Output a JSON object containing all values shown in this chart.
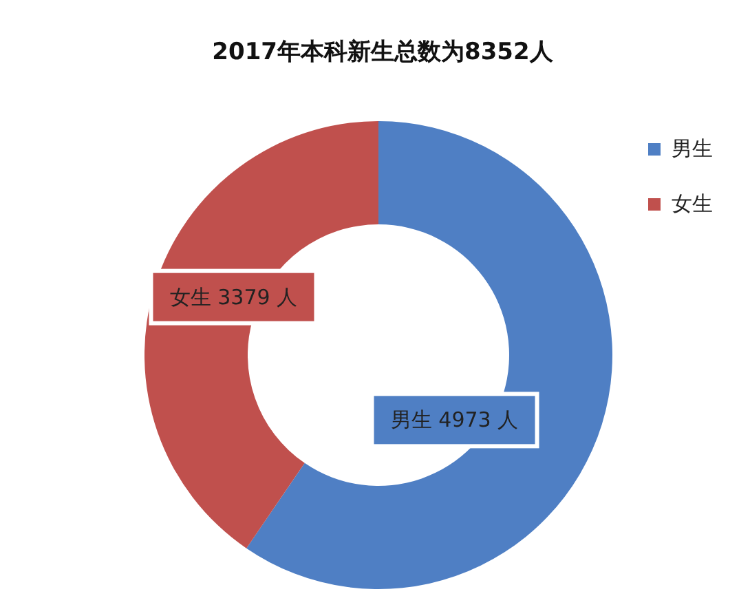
{
  "chart_data": {
    "type": "donut",
    "title": "2017年本科新生总数为8352人",
    "categories": [
      "男生",
      "女生"
    ],
    "values": [
      4973,
      3379
    ],
    "colors": [
      "#4f7fc4",
      "#c0504d"
    ],
    "value_labels": [
      "男生 4973 人",
      "女生 3379 人"
    ],
    "legend": "top right"
  }
}
